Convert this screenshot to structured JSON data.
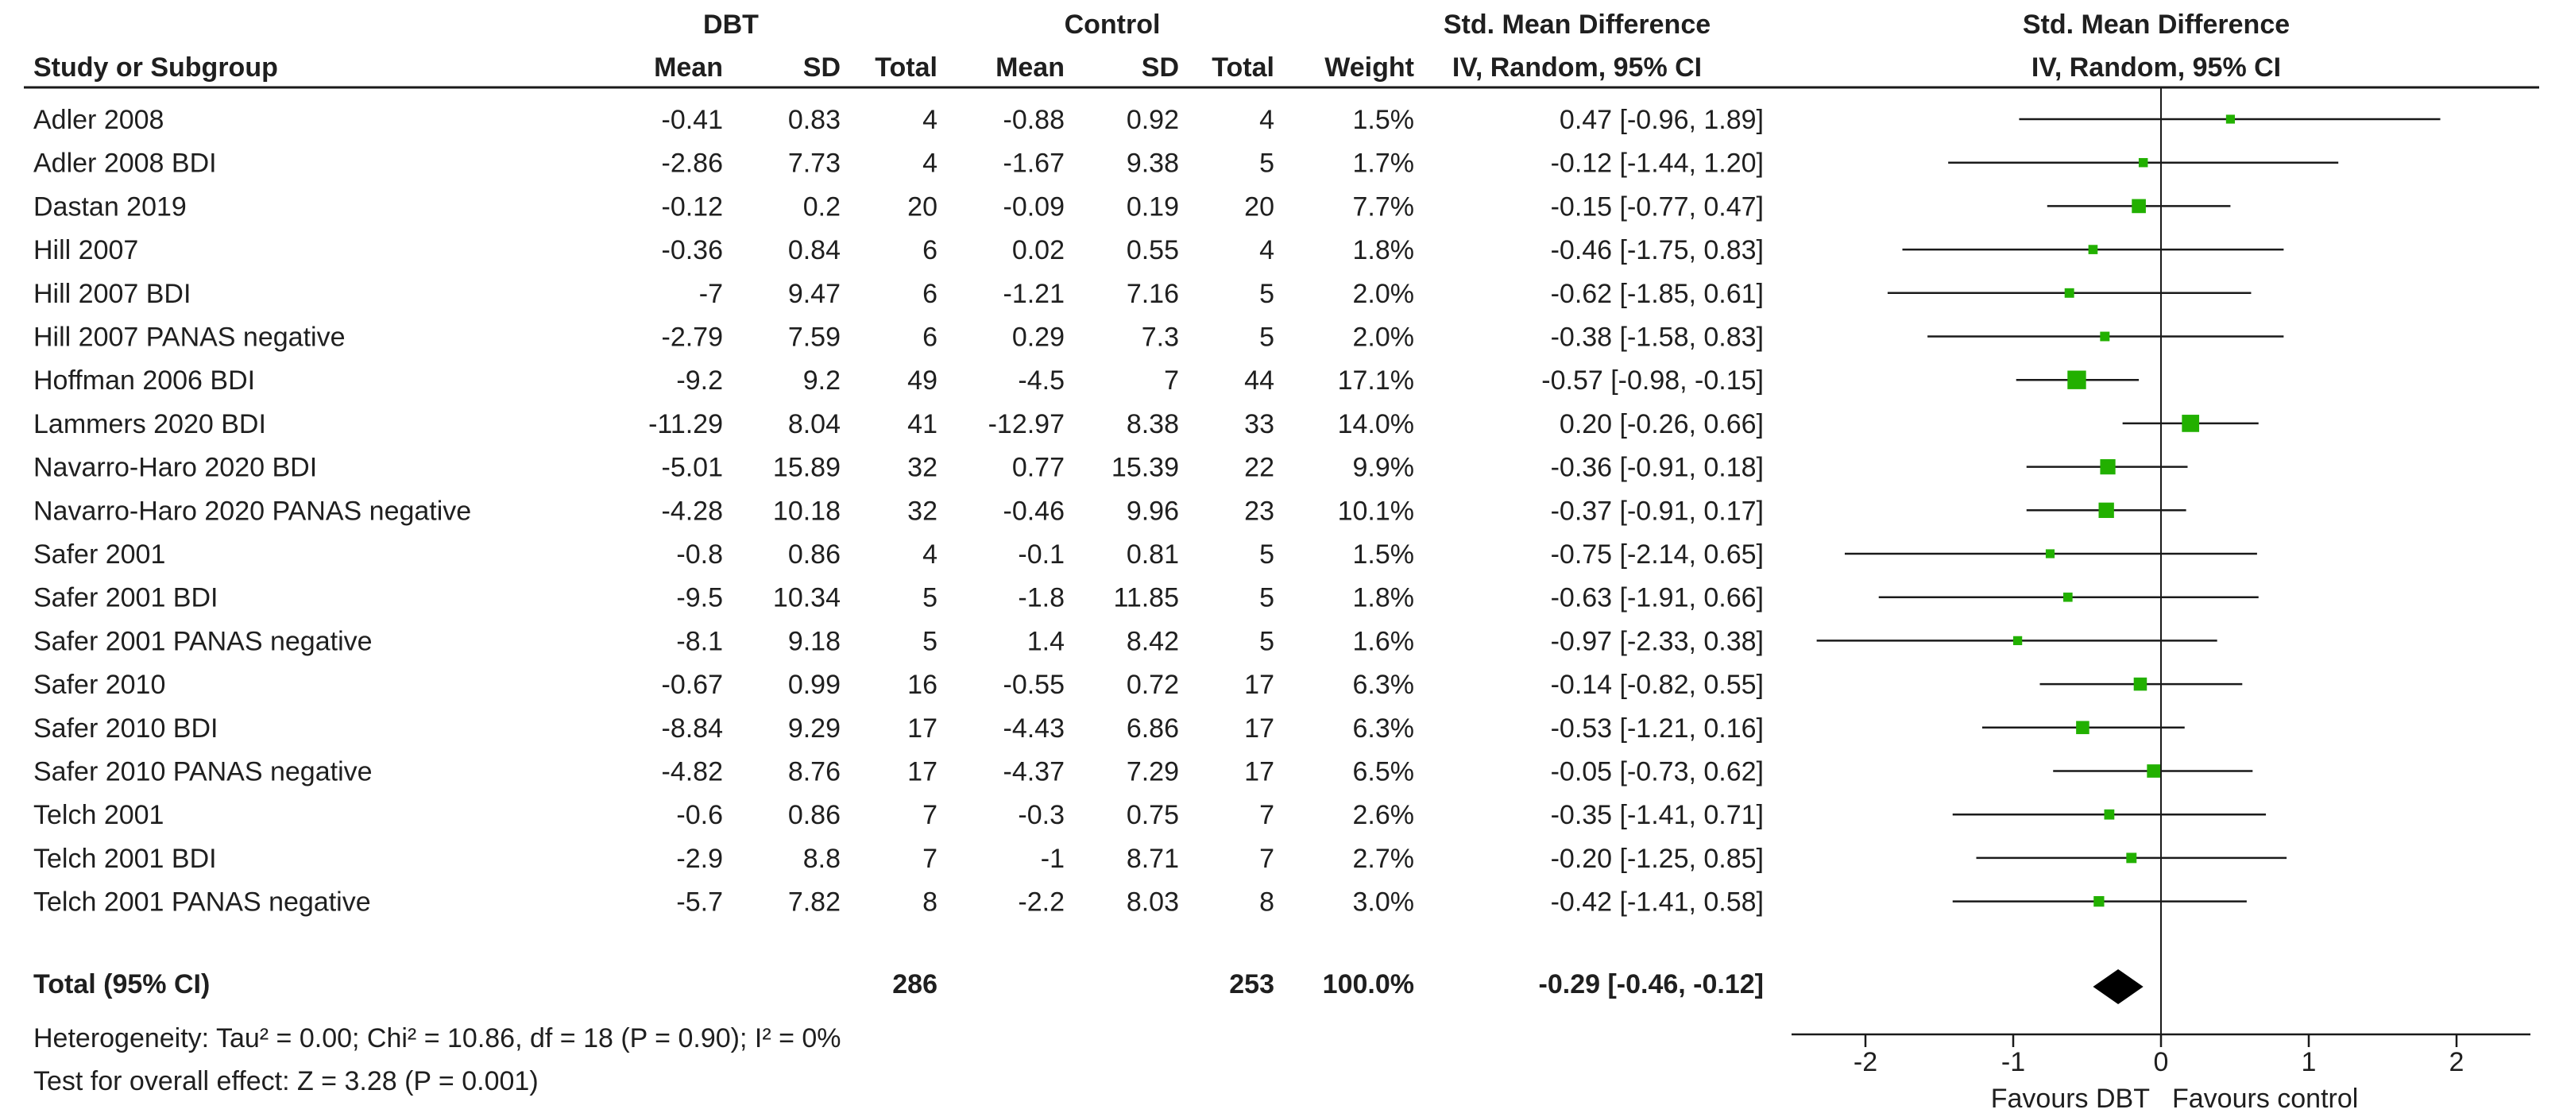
{
  "table": {
    "group_headers": {
      "experimental": "DBT",
      "control": "Control",
      "effect": "Std. Mean Difference"
    },
    "columns": {
      "study": "Study or Subgroup",
      "mean_e": "Mean",
      "sd_e": "SD",
      "total_e": "Total",
      "mean_c": "Mean",
      "sd_c": "SD",
      "total_c": "Total",
      "weight": "Weight",
      "ci": "IV, Random, 95% CI"
    },
    "rows": [
      {
        "study": "Adler 2008",
        "mean_e": "-0.41",
        "sd_e": "0.83",
        "total_e": "4",
        "mean_c": "-0.88",
        "sd_c": "0.92",
        "total_c": "4",
        "weight": "1.5%",
        "ci": "0.47 [-0.96, 1.89]"
      },
      {
        "study": "Adler 2008 BDI",
        "mean_e": "-2.86",
        "sd_e": "7.73",
        "total_e": "4",
        "mean_c": "-1.67",
        "sd_c": "9.38",
        "total_c": "5",
        "weight": "1.7%",
        "ci": "-0.12 [-1.44, 1.20]"
      },
      {
        "study": "Dastan 2019",
        "mean_e": "-0.12",
        "sd_e": "0.2",
        "total_e": "20",
        "mean_c": "-0.09",
        "sd_c": "0.19",
        "total_c": "20",
        "weight": "7.7%",
        "ci": "-0.15 [-0.77, 0.47]"
      },
      {
        "study": "Hill 2007",
        "mean_e": "-0.36",
        "sd_e": "0.84",
        "total_e": "6",
        "mean_c": "0.02",
        "sd_c": "0.55",
        "total_c": "4",
        "weight": "1.8%",
        "ci": "-0.46 [-1.75, 0.83]"
      },
      {
        "study": "Hill 2007 BDI",
        "mean_e": "-7",
        "sd_e": "9.47",
        "total_e": "6",
        "mean_c": "-1.21",
        "sd_c": "7.16",
        "total_c": "5",
        "weight": "2.0%",
        "ci": "-0.62 [-1.85, 0.61]"
      },
      {
        "study": "Hill 2007 PANAS negative",
        "mean_e": "-2.79",
        "sd_e": "7.59",
        "total_e": "6",
        "mean_c": "0.29",
        "sd_c": "7.3",
        "total_c": "5",
        "weight": "2.0%",
        "ci": "-0.38 [-1.58, 0.83]"
      },
      {
        "study": "Hoffman 2006 BDI",
        "mean_e": "-9.2",
        "sd_e": "9.2",
        "total_e": "49",
        "mean_c": "-4.5",
        "sd_c": "7",
        "total_c": "44",
        "weight": "17.1%",
        "ci": "-0.57 [-0.98, -0.15]"
      },
      {
        "study": "Lammers 2020 BDI",
        "mean_e": "-11.29",
        "sd_e": "8.04",
        "total_e": "41",
        "mean_c": "-12.97",
        "sd_c": "8.38",
        "total_c": "33",
        "weight": "14.0%",
        "ci": "0.20 [-0.26, 0.66]"
      },
      {
        "study": "Navarro-Haro 2020 BDI",
        "mean_e": "-5.01",
        "sd_e": "15.89",
        "total_e": "32",
        "mean_c": "0.77",
        "sd_c": "15.39",
        "total_c": "22",
        "weight": "9.9%",
        "ci": "-0.36 [-0.91, 0.18]"
      },
      {
        "study": "Navarro-Haro 2020 PANAS negative",
        "mean_e": "-4.28",
        "sd_e": "10.18",
        "total_e": "32",
        "mean_c": "-0.46",
        "sd_c": "9.96",
        "total_c": "23",
        "weight": "10.1%",
        "ci": "-0.37 [-0.91, 0.17]"
      },
      {
        "study": "Safer 2001",
        "mean_e": "-0.8",
        "sd_e": "0.86",
        "total_e": "4",
        "mean_c": "-0.1",
        "sd_c": "0.81",
        "total_c": "5",
        "weight": "1.5%",
        "ci": "-0.75 [-2.14, 0.65]"
      },
      {
        "study": "Safer 2001 BDI",
        "mean_e": "-9.5",
        "sd_e": "10.34",
        "total_e": "5",
        "mean_c": "-1.8",
        "sd_c": "11.85",
        "total_c": "5",
        "weight": "1.8%",
        "ci": "-0.63 [-1.91, 0.66]"
      },
      {
        "study": "Safer 2001 PANAS negative",
        "mean_e": "-8.1",
        "sd_e": "9.18",
        "total_e": "5",
        "mean_c": "1.4",
        "sd_c": "8.42",
        "total_c": "5",
        "weight": "1.6%",
        "ci": "-0.97 [-2.33, 0.38]"
      },
      {
        "study": "Safer 2010",
        "mean_e": "-0.67",
        "sd_e": "0.99",
        "total_e": "16",
        "mean_c": "-0.55",
        "sd_c": "0.72",
        "total_c": "17",
        "weight": "6.3%",
        "ci": "-0.14 [-0.82, 0.55]"
      },
      {
        "study": "Safer 2010 BDI",
        "mean_e": "-8.84",
        "sd_e": "9.29",
        "total_e": "17",
        "mean_c": "-4.43",
        "sd_c": "6.86",
        "total_c": "17",
        "weight": "6.3%",
        "ci": "-0.53 [-1.21, 0.16]"
      },
      {
        "study": "Safer 2010 PANAS negative",
        "mean_e": "-4.82",
        "sd_e": "8.76",
        "total_e": "17",
        "mean_c": "-4.37",
        "sd_c": "7.29",
        "total_c": "17",
        "weight": "6.5%",
        "ci": "-0.05 [-0.73, 0.62]"
      },
      {
        "study": "Telch 2001",
        "mean_e": "-0.6",
        "sd_e": "0.86",
        "total_e": "7",
        "mean_c": "-0.3",
        "sd_c": "0.75",
        "total_c": "7",
        "weight": "2.6%",
        "ci": "-0.35 [-1.41, 0.71]"
      },
      {
        "study": "Telch 2001 BDI",
        "mean_e": "-2.9",
        "sd_e": "8.8",
        "total_e": "7",
        "mean_c": "-1",
        "sd_c": "8.71",
        "total_c": "7",
        "weight": "2.7%",
        "ci": "-0.20 [-1.25, 0.85]"
      },
      {
        "study": "Telch 2001 PANAS negative",
        "mean_e": "-5.7",
        "sd_e": "7.82",
        "total_e": "8",
        "mean_c": "-2.2",
        "sd_c": "8.03",
        "total_c": "8",
        "weight": "3.0%",
        "ci": "-0.42 [-1.41, 0.58]"
      }
    ],
    "total": {
      "label": "Total (95% CI)",
      "total_e": "286",
      "total_c": "253",
      "weight": "100.0%",
      "ci": "-0.29 [-0.46, -0.12]"
    },
    "heterogeneity": "Heterogeneity: Tau² = 0.00; Chi² = 10.86, df = 18 (P = 0.90); I² = 0%",
    "overall_effect": "Test for overall effect: Z = 3.28 (P = 0.001)"
  },
  "chart_data": {
    "type": "scatter",
    "subtype": "forest-plot",
    "title": "Std. Mean Difference",
    "subtitle": "IV, Random, 95% CI",
    "xlim": [
      -2.5,
      2.5
    ],
    "xticks": [
      -2,
      -1,
      0,
      1,
      2
    ],
    "favours_left": "Favours DBT",
    "favours_right": "Favours control",
    "studies": [
      {
        "name": "Adler 2008",
        "estimate": 0.47,
        "lower": -0.96,
        "upper": 1.89,
        "weight": 1.5
      },
      {
        "name": "Adler 2008 BDI",
        "estimate": -0.12,
        "lower": -1.44,
        "upper": 1.2,
        "weight": 1.7
      },
      {
        "name": "Dastan 2019",
        "estimate": -0.15,
        "lower": -0.77,
        "upper": 0.47,
        "weight": 7.7
      },
      {
        "name": "Hill 2007",
        "estimate": -0.46,
        "lower": -1.75,
        "upper": 0.83,
        "weight": 1.8
      },
      {
        "name": "Hill 2007 BDI",
        "estimate": -0.62,
        "lower": -1.85,
        "upper": 0.61,
        "weight": 2.0
      },
      {
        "name": "Hill 2007 PANAS negative",
        "estimate": -0.38,
        "lower": -1.58,
        "upper": 0.83,
        "weight": 2.0
      },
      {
        "name": "Hoffman 2006 BDI",
        "estimate": -0.57,
        "lower": -0.98,
        "upper": -0.15,
        "weight": 17.1
      },
      {
        "name": "Lammers 2020 BDI",
        "estimate": 0.2,
        "lower": -0.26,
        "upper": 0.66,
        "weight": 14.0
      },
      {
        "name": "Navarro-Haro 2020 BDI",
        "estimate": -0.36,
        "lower": -0.91,
        "upper": 0.18,
        "weight": 9.9
      },
      {
        "name": "Navarro-Haro 2020 PANAS negative",
        "estimate": -0.37,
        "lower": -0.91,
        "upper": 0.17,
        "weight": 10.1
      },
      {
        "name": "Safer 2001",
        "estimate": -0.75,
        "lower": -2.14,
        "upper": 0.65,
        "weight": 1.5
      },
      {
        "name": "Safer 2001 BDI",
        "estimate": -0.63,
        "lower": -1.91,
        "upper": 0.66,
        "weight": 1.8
      },
      {
        "name": "Safer 2001 PANAS negative",
        "estimate": -0.97,
        "lower": -2.33,
        "upper": 0.38,
        "weight": 1.6
      },
      {
        "name": "Safer 2010",
        "estimate": -0.14,
        "lower": -0.82,
        "upper": 0.55,
        "weight": 6.3
      },
      {
        "name": "Safer 2010 BDI",
        "estimate": -0.53,
        "lower": -1.21,
        "upper": 0.16,
        "weight": 6.3
      },
      {
        "name": "Safer 2010 PANAS negative",
        "estimate": -0.05,
        "lower": -0.73,
        "upper": 0.62,
        "weight": 6.5
      },
      {
        "name": "Telch 2001",
        "estimate": -0.35,
        "lower": -1.41,
        "upper": 0.71,
        "weight": 2.6
      },
      {
        "name": "Telch 2001 BDI",
        "estimate": -0.2,
        "lower": -1.25,
        "upper": 0.85,
        "weight": 2.7
      },
      {
        "name": "Telch 2001 PANAS negative",
        "estimate": -0.42,
        "lower": -1.41,
        "upper": 0.58,
        "weight": 3.0
      }
    ],
    "pooled": {
      "estimate": -0.29,
      "lower": -0.46,
      "upper": -0.12
    },
    "colors": {
      "marker": "#22b000",
      "line": "#1a1a1a",
      "diamond": "#000000"
    }
  }
}
